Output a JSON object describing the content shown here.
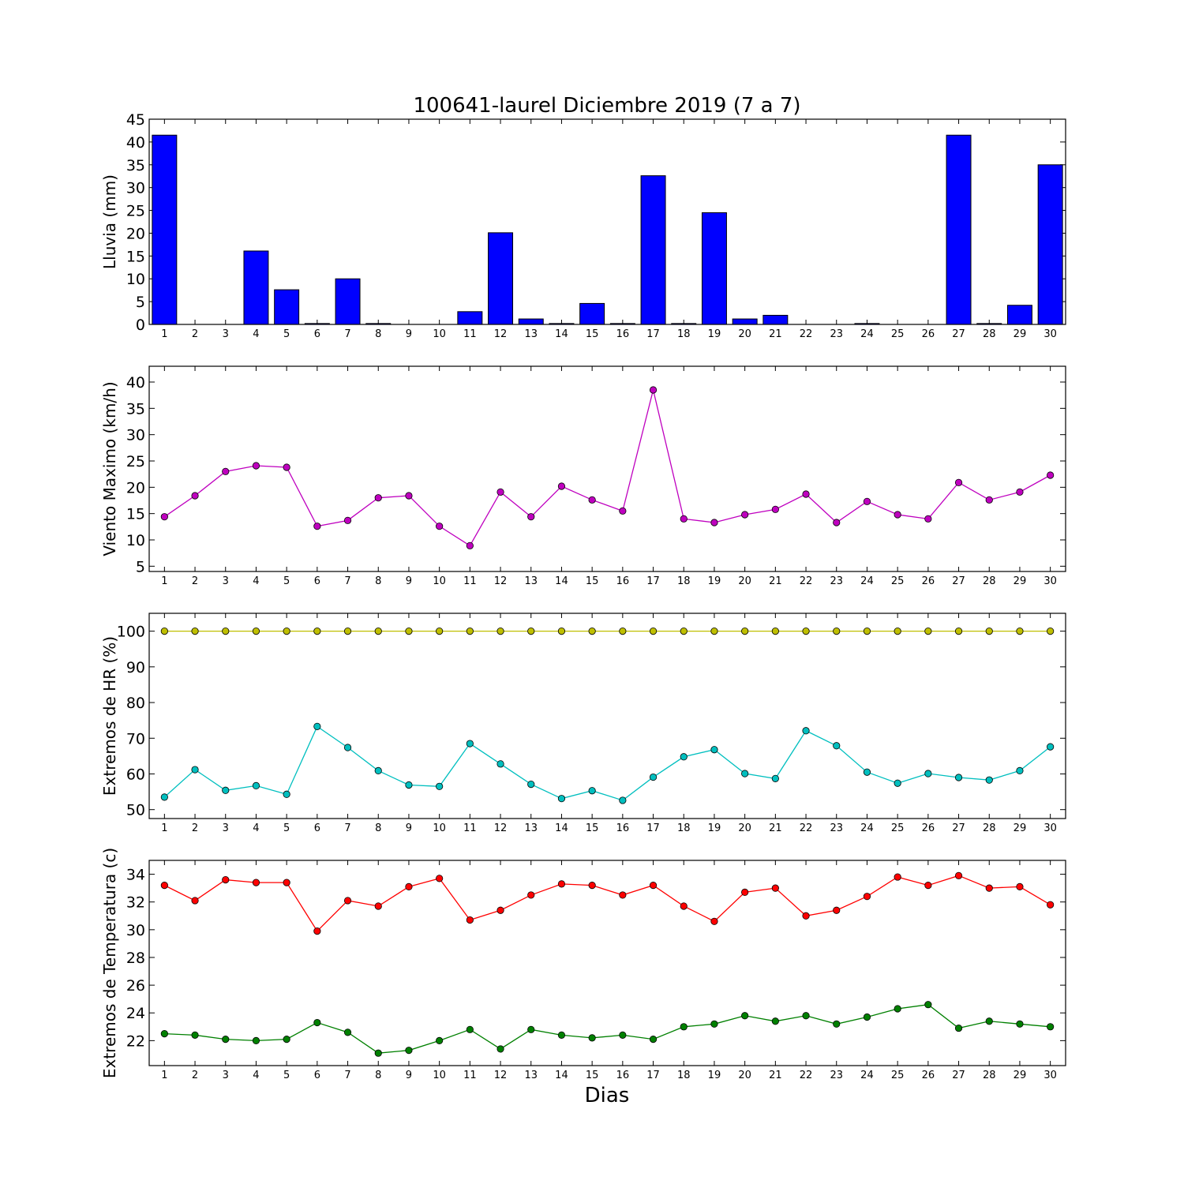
{
  "title": "100641-laurel Diciembre 2019  (7 a 7)",
  "xlabel": "Dias",
  "colors": {
    "rain_bar": "#0000ff",
    "wind": "#bf00bf",
    "hr_max": "#bfbf00",
    "hr_min": "#00bfbf",
    "temp_max": "#ff0000",
    "temp_min": "#008000"
  },
  "chart_data": [
    {
      "type": "bar",
      "ylabel": "Lluvia (mm)",
      "categories": [
        "1",
        "2",
        "3",
        "4",
        "5",
        "6",
        "7",
        "8",
        "9",
        "10",
        "11",
        "12",
        "13",
        "14",
        "15",
        "16",
        "17",
        "18",
        "19",
        "20",
        "21",
        "22",
        "23",
        "24",
        "25",
        "26",
        "27",
        "28",
        "29",
        "30"
      ],
      "values": [
        41.5,
        0,
        0,
        16.1,
        7.6,
        0.2,
        10.0,
        0.2,
        0,
        0,
        2.8,
        20.1,
        1.2,
        0.2,
        4.6,
        0.2,
        32.6,
        0.2,
        24.5,
        1.2,
        2.0,
        0,
        0,
        0.2,
        0,
        0,
        41.5,
        0.2,
        4.2,
        35.0
      ],
      "ylim": [
        0,
        45
      ],
      "yticks": [
        0,
        5,
        10,
        15,
        20,
        25,
        30,
        35,
        40,
        45
      ]
    },
    {
      "type": "line",
      "ylabel": "Viento Maximo (km/h)",
      "categories": [
        "1",
        "2",
        "3",
        "4",
        "5",
        "6",
        "7",
        "8",
        "9",
        "10",
        "11",
        "12",
        "13",
        "14",
        "15",
        "16",
        "17",
        "18",
        "19",
        "20",
        "21",
        "22",
        "23",
        "24",
        "25",
        "26",
        "27",
        "28",
        "29",
        "30"
      ],
      "series": [
        {
          "values": [
            14.4,
            18.4,
            23.0,
            24.1,
            23.8,
            12.6,
            13.7,
            18.0,
            18.4,
            12.6,
            8.9,
            19.1,
            14.4,
            20.2,
            17.6,
            15.5,
            38.5,
            14.0,
            13.3,
            14.8,
            15.8,
            18.7,
            13.3,
            17.3,
            14.8,
            14.0,
            20.9,
            17.6,
            19.1,
            22.3
          ]
        }
      ],
      "ylim": [
        4,
        43
      ],
      "yticks": [
        5,
        10,
        15,
        20,
        25,
        30,
        35,
        40
      ]
    },
    {
      "type": "line",
      "ylabel": "Extremos de HR (%)",
      "categories": [
        "1",
        "2",
        "3",
        "4",
        "5",
        "6",
        "7",
        "8",
        "9",
        "10",
        "11",
        "12",
        "13",
        "14",
        "15",
        "16",
        "17",
        "18",
        "19",
        "20",
        "21",
        "22",
        "23",
        "24",
        "25",
        "26",
        "27",
        "28",
        "29",
        "30"
      ],
      "series": [
        {
          "values": [
            100,
            100,
            100,
            100,
            100,
            100,
            100,
            100,
            100,
            100,
            100,
            100,
            100,
            100,
            100,
            100,
            100,
            100,
            100,
            100,
            100,
            100,
            100,
            100,
            100,
            100,
            100,
            100,
            100,
            100
          ]
        },
        {
          "values": [
            53.5,
            61.2,
            55.4,
            56.7,
            54.3,
            73.3,
            67.4,
            60.9,
            56.9,
            56.5,
            68.5,
            62.8,
            57.1,
            53.1,
            55.3,
            52.6,
            59.1,
            64.8,
            66.8,
            60.1,
            58.7,
            72.1,
            67.9,
            60.5,
            57.4,
            60.1,
            59.0,
            58.3,
            60.9,
            67.6
          ]
        }
      ],
      "ylim": [
        47.5,
        105
      ],
      "yticks": [
        50,
        60,
        70,
        80,
        90,
        100
      ]
    },
    {
      "type": "line",
      "ylabel": "Extremos de Temperatura (c)",
      "categories": [
        "1",
        "2",
        "3",
        "4",
        "5",
        "6",
        "7",
        "8",
        "9",
        "10",
        "11",
        "12",
        "13",
        "14",
        "15",
        "16",
        "17",
        "18",
        "19",
        "20",
        "21",
        "22",
        "23",
        "24",
        "25",
        "26",
        "27",
        "28",
        "29",
        "30"
      ],
      "series": [
        {
          "values": [
            33.2,
            32.1,
            33.6,
            33.4,
            33.4,
            29.9,
            32.1,
            31.7,
            33.1,
            33.7,
            30.7,
            31.4,
            32.5,
            33.3,
            33.2,
            32.5,
            33.2,
            31.7,
            30.6,
            32.7,
            33.0,
            31.0,
            31.4,
            32.4,
            33.8,
            33.2,
            33.9,
            33.0,
            33.1,
            31.8
          ]
        },
        {
          "values": [
            22.5,
            22.4,
            22.1,
            22.0,
            22.1,
            23.3,
            22.6,
            21.1,
            21.3,
            22.0,
            22.8,
            21.4,
            22.8,
            22.4,
            22.2,
            22.4,
            22.1,
            23.0,
            23.2,
            23.8,
            23.4,
            23.8,
            23.2,
            23.7,
            24.3,
            24.6,
            22.9,
            23.4,
            23.2,
            23.0
          ]
        }
      ],
      "ylim": [
        20.2,
        35
      ],
      "yticks": [
        22,
        24,
        26,
        28,
        30,
        32,
        34
      ]
    }
  ]
}
